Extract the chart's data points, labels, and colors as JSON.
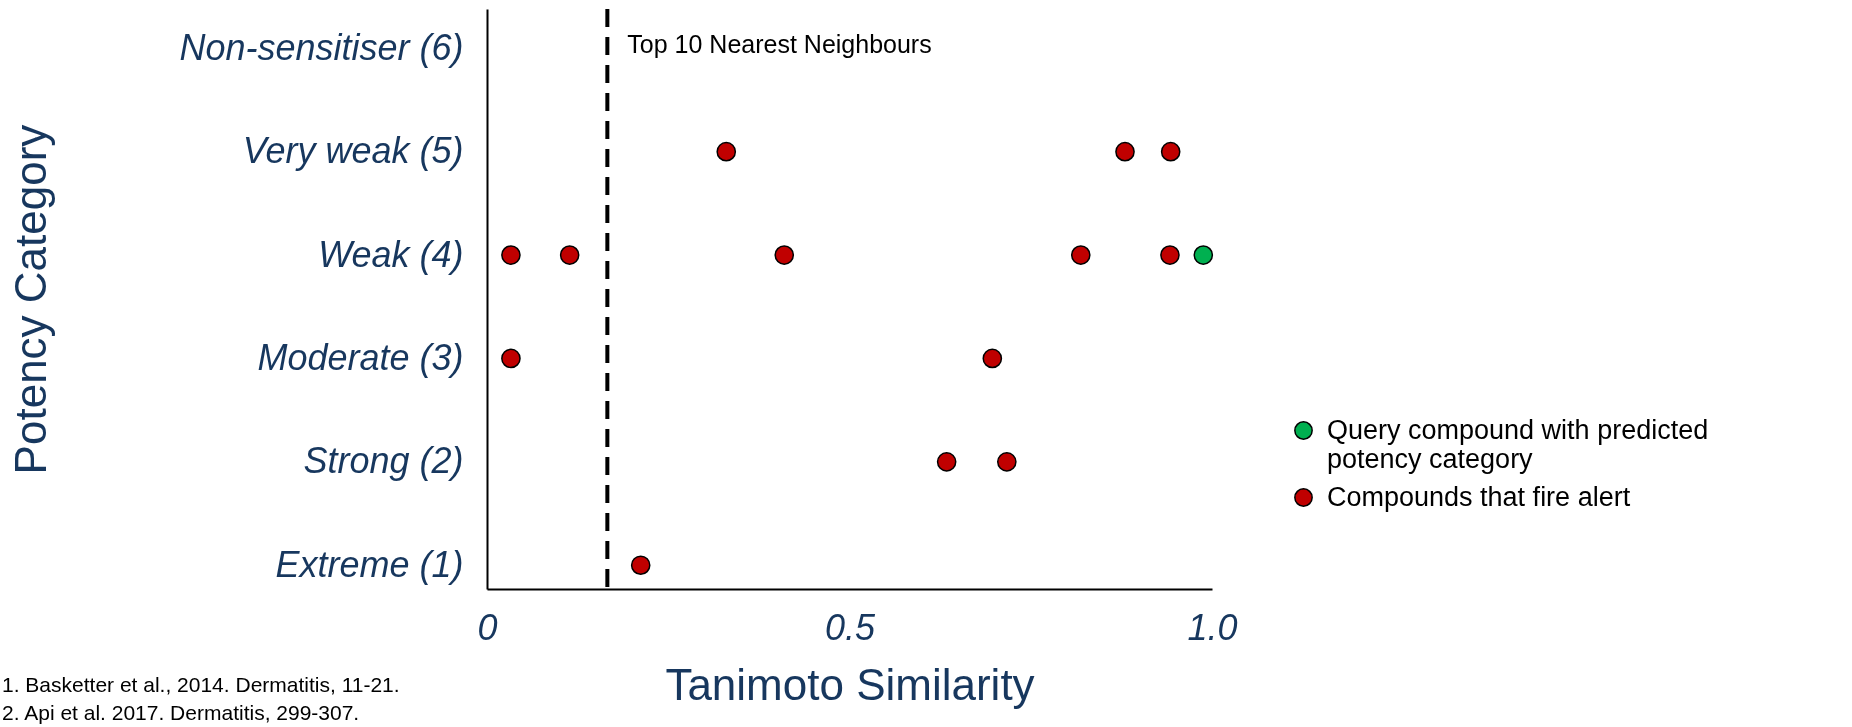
{
  "chart_data": {
    "type": "scatter",
    "xlabel": "Tanimoto Similarity",
    "ylabel": "Potency Category",
    "xlim": [
      0,
      1
    ],
    "xticks": [
      0,
      0.5,
      {
        "value": 1,
        "label": "1.0"
      }
    ],
    "ylim": [
      0.77,
      6.38
    ],
    "yticks": [
      {
        "value": 1,
        "label": "Extreme (1)"
      },
      {
        "value": 2,
        "label": "Strong (2)"
      },
      {
        "value": 3,
        "label": "Moderate (3)"
      },
      {
        "value": 4,
        "label": "Weak (4)"
      },
      {
        "value": 5,
        "label": "Very weak (5)"
      },
      {
        "value": 6,
        "label": "Non-sensitiser (6)"
      }
    ],
    "series": [
      {
        "name": "Query compound with predicted potency category",
        "color": "#00b050",
        "x": [
          0.988
        ],
        "values": [
          4
        ]
      },
      {
        "name": "Compounds that fire alert",
        "color": "#c00000",
        "x": [
          0.33,
          0.88,
          0.943,
          0.033,
          0.114,
          0.41,
          0.819,
          0.942,
          0.033,
          0.697,
          0.634,
          0.717,
          0.212
        ],
        "values": [
          5,
          5,
          5,
          4,
          4,
          4,
          4,
          4,
          3,
          3,
          2,
          2,
          1
        ]
      }
    ],
    "ref_lines": [
      {
        "axis": "x",
        "value": 0.166,
        "label": "Top 10 Nearest Neighbours",
        "line_style": "dashed"
      }
    ],
    "annotations": [
      "1. Basketter et al., 2014. Dermatitis, 11-21.",
      "2. Api et al. 2017. Dermatitis, 299-307."
    ],
    "marker": "circle",
    "legend": "right",
    "grid": false
  }
}
